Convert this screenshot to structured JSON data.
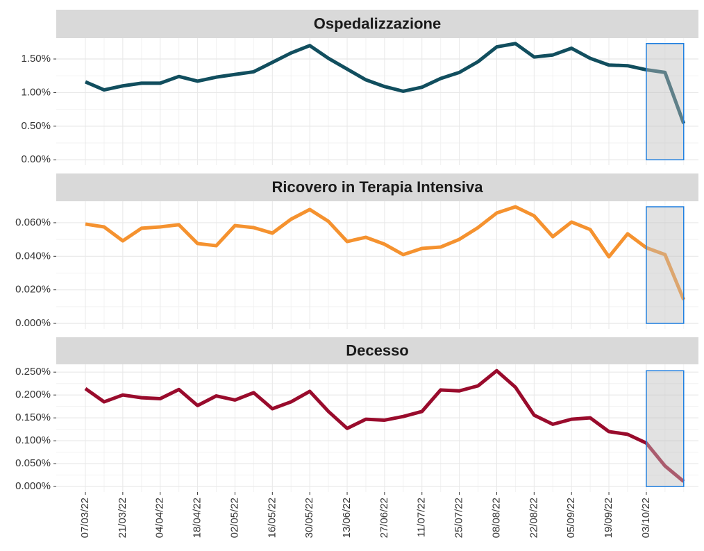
{
  "chart_data": [
    {
      "type": "line",
      "title": "Ospedalizzazione",
      "color": "#114e5e",
      "values": [
        1.16,
        1.04,
        1.1,
        1.14,
        1.14,
        1.24,
        1.17,
        1.23,
        1.27,
        1.31,
        1.45,
        1.59,
        1.7,
        1.51,
        1.35,
        1.19,
        1.09,
        1.02,
        1.08,
        1.21,
        1.3,
        1.46,
        1.68,
        1.73,
        1.53,
        1.56,
        1.66,
        1.51,
        1.41,
        1.4,
        1.34,
        1.3,
        0.54
      ],
      "ylim": [
        -0.08,
        1.81
      ],
      "yticks": [
        {
          "value": 0,
          "label": "0.00%"
        },
        {
          "value": 0.5,
          "label": "0.50%"
        },
        {
          "value": 1,
          "label": "1.00%"
        },
        {
          "value": 1.5,
          "label": "1.50%"
        }
      ],
      "highlight_range": [
        30,
        32
      ],
      "grid": true
    },
    {
      "type": "line",
      "title": "Ricovero in Terapia Intensiva",
      "color": "#f5922f",
      "values": [
        0.0592,
        0.0575,
        0.0492,
        0.0567,
        0.0575,
        0.0588,
        0.0476,
        0.0463,
        0.0583,
        0.0571,
        0.0538,
        0.0621,
        0.0679,
        0.0608,
        0.0488,
        0.0513,
        0.0472,
        0.041,
        0.0447,
        0.0455,
        0.0501,
        0.0571,
        0.0658,
        0.0695,
        0.0641,
        0.0517,
        0.0604,
        0.0559,
        0.0397,
        0.0534,
        0.0451,
        0.041,
        0.0141
      ],
      "ylim": [
        -0.0033,
        0.0728
      ],
      "yticks": [
        {
          "value": 0,
          "label": "0.000%"
        },
        {
          "value": 0.02,
          "label": "0.020%"
        },
        {
          "value": 0.04,
          "label": "0.040%"
        },
        {
          "value": 0.06,
          "label": "0.060%"
        }
      ],
      "highlight_range": [
        30,
        32
      ],
      "grid": true
    },
    {
      "type": "line",
      "title": "Decesso",
      "color": "#990b2c",
      "categories": [
        "07/03/22",
        null,
        "21/03/22",
        null,
        "04/04/22",
        null,
        "18/04/22",
        null,
        "02/05/22",
        null,
        "16/05/22",
        null,
        "30/05/22",
        null,
        "13/06/22",
        null,
        "27/06/22",
        null,
        "11/07/22",
        null,
        "25/07/22",
        null,
        "08/08/22",
        null,
        "22/08/22",
        null,
        "05/09/22",
        null,
        "19/09/22",
        null,
        "03/10/22",
        null,
        null
      ],
      "values": [
        0.214,
        0.185,
        0.2,
        0.194,
        0.192,
        0.212,
        0.177,
        0.198,
        0.189,
        0.205,
        0.17,
        0.185,
        0.208,
        0.164,
        0.127,
        0.147,
        0.145,
        0.153,
        0.164,
        0.211,
        0.209,
        0.22,
        0.253,
        0.217,
        0.156,
        0.136,
        0.147,
        0.15,
        0.12,
        0.114,
        0.095,
        0.045,
        0.011
      ],
      "ylim": [
        -0.012,
        0.267
      ],
      "yticks": [
        {
          "value": 0,
          "label": "0.000%"
        },
        {
          "value": 0.05,
          "label": "0.050%"
        },
        {
          "value": 0.1,
          "label": "0.100%"
        },
        {
          "value": 0.15,
          "label": "0.150%"
        },
        {
          "value": 0.2,
          "label": "0.200%"
        },
        {
          "value": 0.25,
          "label": "0.250%"
        }
      ],
      "highlight_range": [
        30,
        32
      ],
      "grid": true
    }
  ]
}
